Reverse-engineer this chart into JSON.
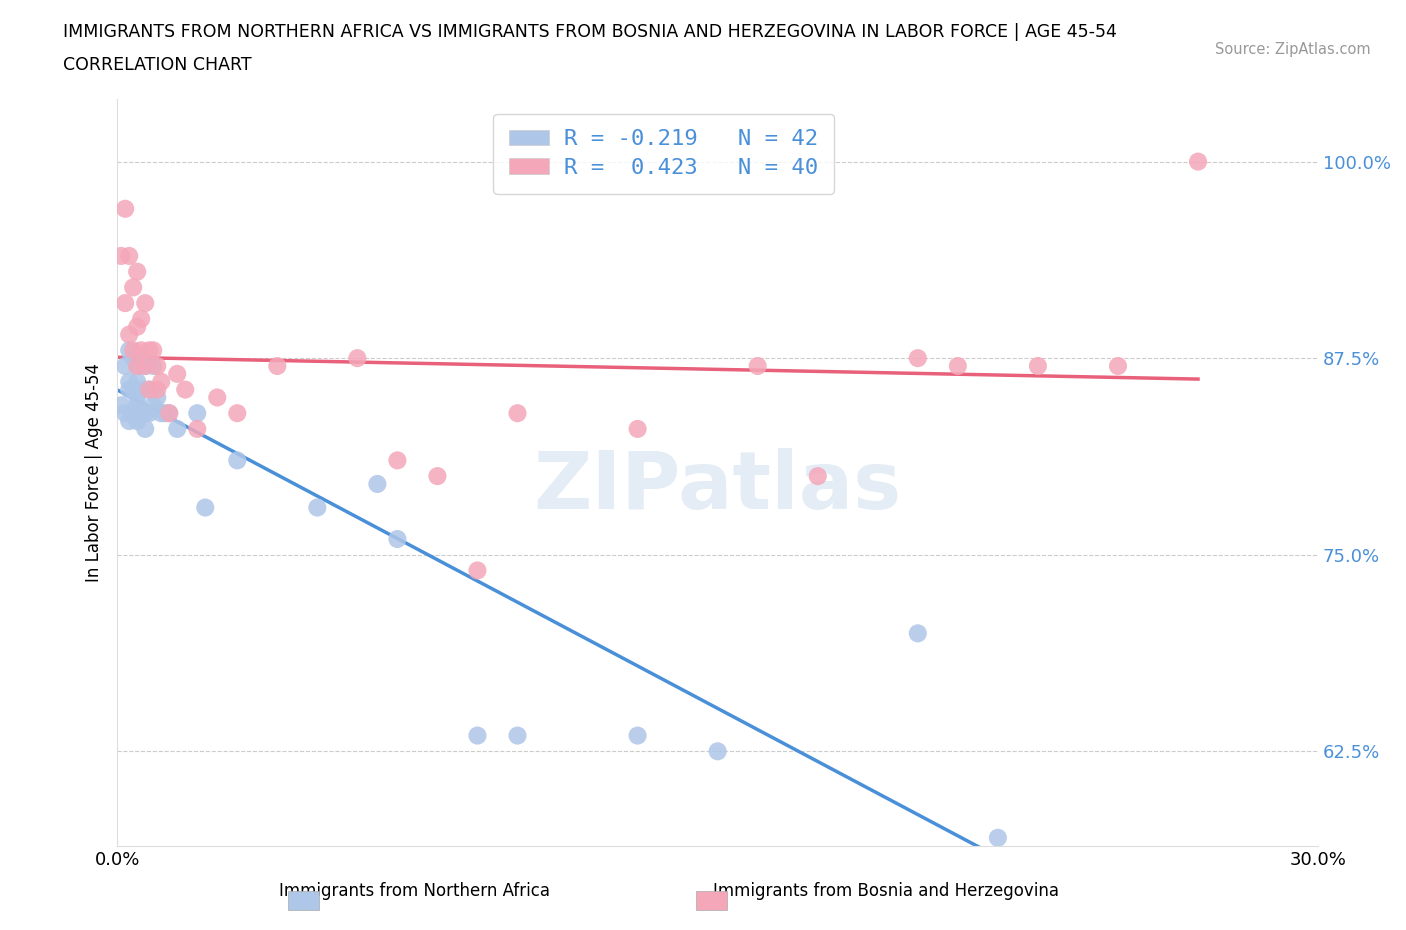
{
  "title_line1": "IMMIGRANTS FROM NORTHERN AFRICA VS IMMIGRANTS FROM BOSNIA AND HERZEGOVINA IN LABOR FORCE | AGE 45-54",
  "title_line2": "CORRELATION CHART",
  "source_text": "Source: ZipAtlas.com",
  "ylabel": "In Labor Force | Age 45-54",
  "xlim": [
    0.0,
    0.3
  ],
  "ylim": [
    0.565,
    1.04
  ],
  "yticks": [
    0.625,
    0.75,
    0.875,
    1.0
  ],
  "ytick_labels": [
    "62.5%",
    "75.0%",
    "87.5%",
    "100.0%"
  ],
  "xticks": [
    0.0,
    0.3
  ],
  "xtick_labels": [
    "0.0%",
    "30.0%"
  ],
  "blue_R": -0.219,
  "blue_N": 42,
  "pink_R": 0.423,
  "pink_N": 40,
  "blue_color": "#aec6e8",
  "pink_color": "#f4a7b9",
  "blue_line_color": "#4a90d9",
  "pink_line_color": "#e8607a",
  "watermark_color": "#cfdeed",
  "legend_color": "#4a90d9",
  "blue_x": [
    0.001,
    0.002,
    0.002,
    0.003,
    0.003,
    0.003,
    0.003,
    0.004,
    0.004,
    0.004,
    0.005,
    0.005,
    0.005,
    0.005,
    0.005,
    0.006,
    0.006,
    0.006,
    0.007,
    0.007,
    0.007,
    0.008,
    0.008,
    0.009,
    0.009,
    0.01,
    0.011,
    0.012,
    0.013,
    0.015,
    0.02,
    0.022,
    0.03,
    0.05,
    0.065,
    0.07,
    0.09,
    0.1,
    0.13,
    0.15,
    0.2,
    0.22
  ],
  "blue_y": [
    0.845,
    0.87,
    0.84,
    0.88,
    0.855,
    0.835,
    0.86,
    0.875,
    0.855,
    0.84,
    0.87,
    0.845,
    0.835,
    0.86,
    0.85,
    0.875,
    0.855,
    0.84,
    0.87,
    0.84,
    0.83,
    0.855,
    0.84,
    0.87,
    0.845,
    0.85,
    0.84,
    0.84,
    0.84,
    0.83,
    0.84,
    0.78,
    0.81,
    0.78,
    0.795,
    0.76,
    0.635,
    0.635,
    0.635,
    0.625,
    0.7,
    0.57
  ],
  "pink_x": [
    0.001,
    0.002,
    0.002,
    0.003,
    0.003,
    0.004,
    0.004,
    0.005,
    0.005,
    0.005,
    0.006,
    0.006,
    0.007,
    0.007,
    0.008,
    0.008,
    0.009,
    0.01,
    0.01,
    0.011,
    0.013,
    0.015,
    0.017,
    0.02,
    0.025,
    0.03,
    0.04,
    0.06,
    0.07,
    0.08,
    0.09,
    0.1,
    0.13,
    0.16,
    0.175,
    0.2,
    0.21,
    0.23,
    0.25,
    0.27
  ],
  "pink_y": [
    0.94,
    0.97,
    0.91,
    0.94,
    0.89,
    0.88,
    0.92,
    0.87,
    0.895,
    0.93,
    0.88,
    0.9,
    0.87,
    0.91,
    0.88,
    0.855,
    0.88,
    0.855,
    0.87,
    0.86,
    0.84,
    0.865,
    0.855,
    0.83,
    0.85,
    0.84,
    0.87,
    0.875,
    0.81,
    0.8,
    0.74,
    0.84,
    0.83,
    0.87,
    0.8,
    0.875,
    0.87,
    0.87,
    0.87,
    1.0
  ]
}
